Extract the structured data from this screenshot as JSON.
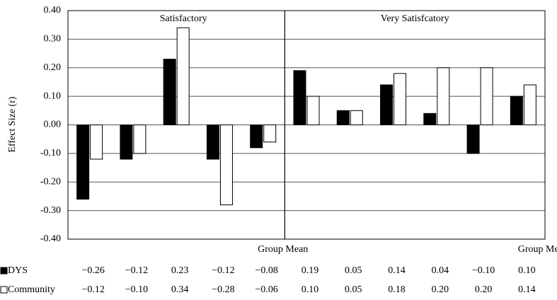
{
  "chart_data": {
    "type": "bar",
    "y_label": "Effect Size (r)",
    "sections": [
      "Satisfactory",
      "Very Satisfcatory"
    ],
    "categories": [
      null,
      null,
      null,
      null,
      "Group Mean",
      null,
      null,
      null,
      null,
      null,
      "Group Mean"
    ],
    "series": [
      {
        "name": "DYS",
        "color": "#000000",
        "values": [
          -0.26,
          -0.12,
          0.23,
          -0.12,
          -0.08,
          0.19,
          0.05,
          0.14,
          0.04,
          -0.1,
          0.1
        ],
        "value_labels": [
          "−0.26",
          "−0.12",
          "0.23",
          "−0.12",
          "−0.08",
          "0.19",
          "0.05",
          "0.14",
          "0.04",
          "−0.10",
          "0.10"
        ]
      },
      {
        "name": "Community",
        "color": "#ffffff",
        "values": [
          -0.12,
          -0.1,
          0.34,
          -0.28,
          -0.06,
          0.1,
          0.05,
          0.18,
          0.2,
          0.2,
          0.14
        ],
        "value_labels": [
          "−0.12",
          "−0.10",
          "0.34",
          "−0.28",
          "−0.06",
          "0.10",
          "0.05",
          "0.18",
          "0.20",
          "0.20",
          "0.14"
        ]
      }
    ],
    "ylim": [
      -0.4,
      0.4
    ],
    "yticks": [
      {
        "value": 0.4,
        "label": "0.40"
      },
      {
        "value": 0.3,
        "label": "0.30"
      },
      {
        "value": 0.2,
        "label": "0.20"
      },
      {
        "value": 0.1,
        "label": "0.10"
      },
      {
        "value": 0,
        "label": "0.00"
      },
      {
        "value": -0.1,
        "label": "-0.10"
      },
      {
        "value": -0.2,
        "label": "-0.20"
      },
      {
        "value": -0.3,
        "label": "-0.30"
      },
      {
        "value": -0.4,
        "label": "-0.40"
      }
    ],
    "grid": true
  }
}
